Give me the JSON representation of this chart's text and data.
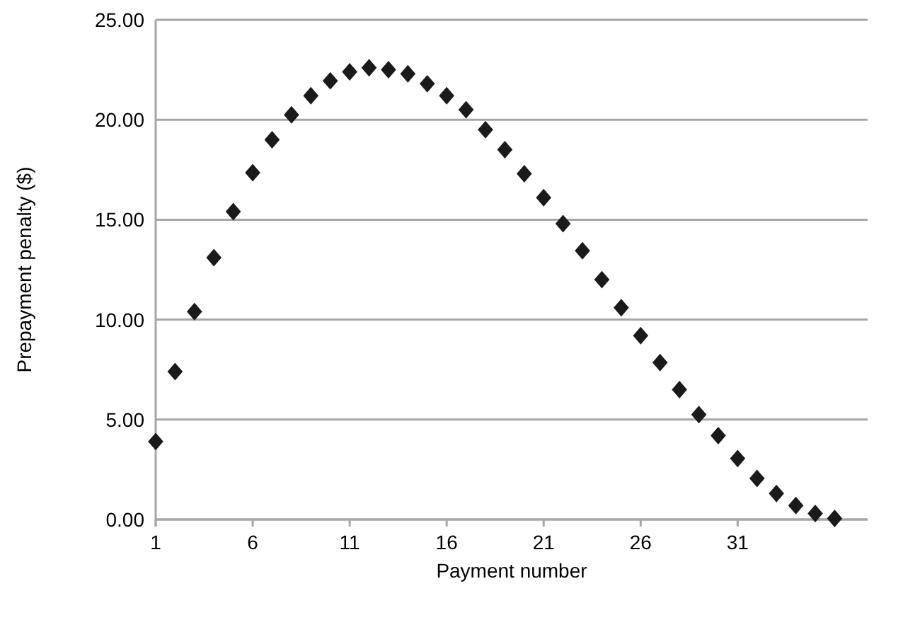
{
  "chart_data": {
    "type": "scatter",
    "xlabel": "Payment number",
    "ylabel": "Prepayment penalty ($)",
    "x": [
      1,
      2,
      3,
      4,
      5,
      6,
      7,
      8,
      9,
      10,
      11,
      12,
      13,
      14,
      15,
      16,
      17,
      18,
      19,
      20,
      21,
      22,
      23,
      24,
      25,
      26,
      27,
      28,
      29,
      30,
      31,
      32,
      33,
      34,
      35,
      36
    ],
    "series": [
      {
        "color": "#1a1a1a",
        "values": [
          3.9,
          7.4,
          10.4,
          13.1,
          15.4,
          17.35,
          19.0,
          20.25,
          21.2,
          21.95,
          22.4,
          22.6,
          22.5,
          22.3,
          21.8,
          21.2,
          20.5,
          19.5,
          18.5,
          17.3,
          16.1,
          14.8,
          13.45,
          12.0,
          10.6,
          9.2,
          7.85,
          6.5,
          5.25,
          4.2,
          3.05,
          2.05,
          1.3,
          0.7,
          0.3,
          0.05
        ]
      }
    ],
    "xlim": [
      1,
      37.7
    ],
    "xticks": [
      1,
      6,
      11,
      16,
      21,
      26,
      31
    ],
    "ylim": [
      0,
      25
    ],
    "yticks": [
      {
        "value": 0,
        "label": "0.00"
      },
      {
        "value": 5,
        "label": "5.00"
      },
      {
        "value": 10,
        "label": "10.00"
      },
      {
        "value": 15,
        "label": "15.00"
      },
      {
        "value": 20,
        "label": "20.00"
      },
      {
        "value": 25,
        "label": "25.00"
      }
    ],
    "grid": "y",
    "marker": "diamond"
  }
}
